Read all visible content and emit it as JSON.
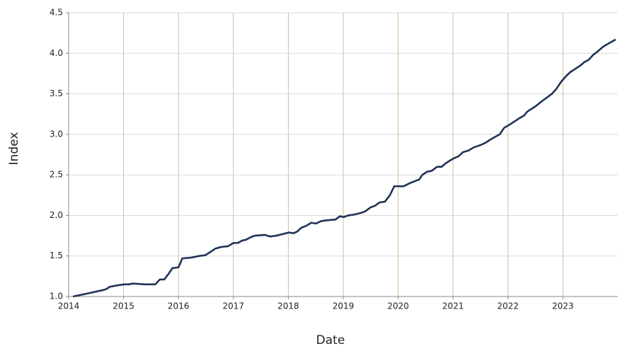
{
  "chart_data": {
    "type": "line",
    "xlabel": "Date",
    "ylabel": "Index",
    "x": [
      2014.08,
      2014.43,
      2014.63,
      2014.68,
      2014.75,
      2014.91,
      2015.02,
      2015.1,
      2015.17,
      2015.38,
      2015.58,
      2015.66,
      2015.74,
      2015.82,
      2015.89,
      2016.0,
      2016.07,
      2016.23,
      2016.38,
      2016.49,
      2016.56,
      2016.67,
      2016.77,
      2016.9,
      2017.0,
      2017.08,
      2017.16,
      2017.23,
      2017.31,
      2017.39,
      2017.57,
      2017.67,
      2017.78,
      2017.9,
      2018.01,
      2018.09,
      2018.16,
      2018.24,
      2018.32,
      2018.42,
      2018.5,
      2018.6,
      2018.7,
      2018.86,
      2018.94,
      2019.01,
      2019.09,
      2019.19,
      2019.32,
      2019.4,
      2019.5,
      2019.58,
      2019.66,
      2019.76,
      2019.85,
      2019.93,
      2020.1,
      2020.22,
      2020.33,
      2020.38,
      2020.44,
      2020.53,
      2020.61,
      2020.71,
      2020.79,
      2020.88,
      2021.0,
      2021.1,
      2021.18,
      2021.28,
      2021.38,
      2021.51,
      2021.6,
      2021.69,
      2021.77,
      2021.85,
      2021.93,
      2022.03,
      2022.21,
      2022.29,
      2022.35,
      2022.51,
      2022.62,
      2022.72,
      2022.8,
      2022.88,
      2022.97,
      2023.06,
      2023.14,
      2023.21,
      2023.32,
      2023.39,
      2023.47,
      2023.55,
      2023.63,
      2023.73,
      2023.83,
      2023.96
    ],
    "series": [
      {
        "color": "#1f3354",
        "values": [
          1.0,
          1.05,
          1.08,
          1.09,
          1.12,
          1.14,
          1.15,
          1.15,
          1.16,
          1.15,
          1.15,
          1.21,
          1.21,
          1.28,
          1.35,
          1.36,
          1.47,
          1.48,
          1.5,
          1.51,
          1.54,
          1.59,
          1.61,
          1.62,
          1.66,
          1.66,
          1.69,
          1.7,
          1.73,
          1.75,
          1.76,
          1.74,
          1.75,
          1.77,
          1.79,
          1.78,
          1.8,
          1.85,
          1.87,
          1.91,
          1.9,
          1.93,
          1.94,
          1.95,
          1.99,
          1.98,
          2.0,
          2.01,
          2.03,
          2.05,
          2.1,
          2.12,
          2.16,
          2.17,
          2.25,
          2.36,
          2.36,
          2.4,
          2.43,
          2.44,
          2.5,
          2.54,
          2.55,
          2.6,
          2.6,
          2.65,
          2.7,
          2.73,
          2.78,
          2.8,
          2.84,
          2.87,
          2.9,
          2.94,
          2.97,
          3.0,
          3.08,
          3.12,
          3.2,
          3.23,
          3.28,
          3.35,
          3.41,
          3.46,
          3.5,
          3.56,
          3.65,
          3.72,
          3.77,
          3.8,
          3.85,
          3.89,
          3.92,
          3.98,
          4.02,
          4.08,
          4.12,
          4.17
        ]
      }
    ],
    "xlim": [
      2014,
      2024
    ],
    "xticks": [
      2014,
      2015,
      2016,
      2017,
      2018,
      2019,
      2020,
      2021,
      2022,
      2023
    ],
    "ylim": [
      1,
      4.5
    ],
    "yticks": [
      {
        "value": 1,
        "label": "1.0"
      },
      1.5,
      {
        "value": 2,
        "label": "2.0"
      },
      2.5,
      {
        "value": 3,
        "label": "3.0"
      },
      3.5,
      {
        "value": 4,
        "label": "4.0"
      },
      4.5
    ],
    "grid": true
  }
}
